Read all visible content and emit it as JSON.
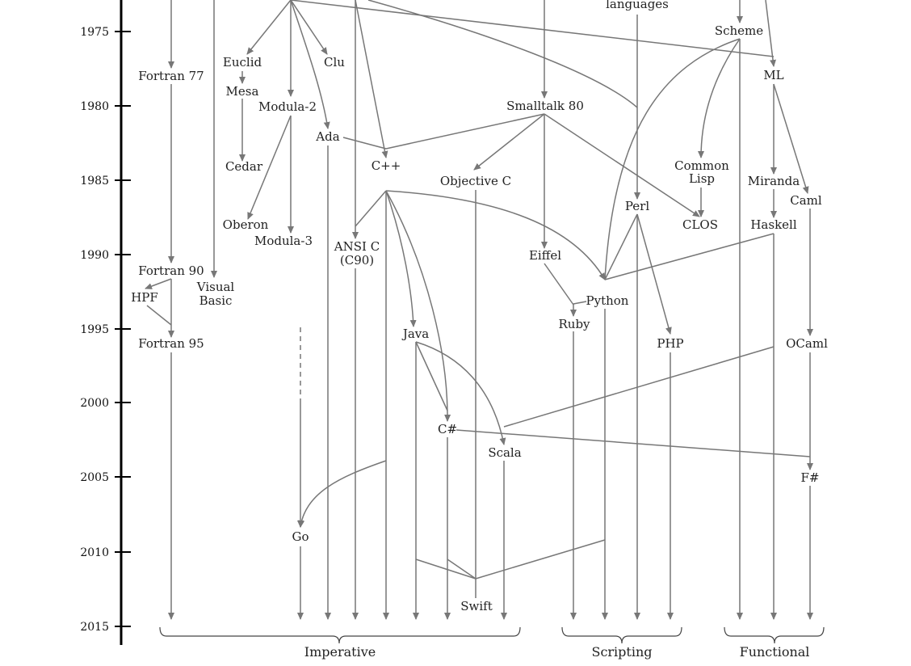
{
  "timeline": {
    "years": [
      "1975",
      "1980",
      "1985",
      "1990",
      "1995",
      "2000",
      "2005",
      "2010",
      "2015"
    ]
  },
  "languages": {
    "languages_label": "languages",
    "scheme": "Scheme",
    "fortran77": "Fortran 77",
    "euclid": "Euclid",
    "clu": "Clu",
    "ml": "ML",
    "mesa": "Mesa",
    "modula2": "Modula-2",
    "smalltalk80": "Smalltalk 80",
    "ada": "Ada",
    "cedar": "Cedar",
    "cpp": "C++",
    "objective_c": "Objective C",
    "common": "Common",
    "lisp": "Lisp",
    "miranda": "Miranda",
    "caml": "Caml",
    "perl": "Perl",
    "oberon": "Oberon",
    "clos": "CLOS",
    "haskell": "Haskell",
    "modula3": "Modula-3",
    "ansi_c": "ANSI C",
    "c90": "(C90)",
    "eiffel": "Eiffel",
    "fortran90": "Fortran 90",
    "visual": "Visual",
    "basic": "Basic",
    "hpf": "HPF",
    "python": "Python",
    "ruby": "Ruby",
    "java": "Java",
    "fortran95": "Fortran 95",
    "php": "PHP",
    "ocaml": "OCaml",
    "csharp": "C#",
    "scala": "Scala",
    "fsharp": "F#",
    "go": "Go",
    "swift": "Swift"
  },
  "groups": {
    "imperative": "Imperative",
    "scripting": "Scripting",
    "functional": "Functional"
  }
}
